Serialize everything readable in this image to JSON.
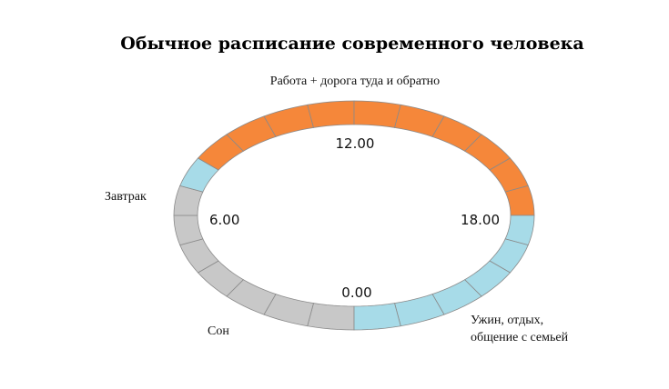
{
  "title": "Обычное расписание современного человека",
  "colors": {
    "work": "#f5873a",
    "leisure": "#a7dbe8",
    "sleep": "#c8c8c8",
    "divider": "#8a8a8a"
  },
  "hour_labels": {
    "noon": "12.00",
    "morning": "6.00",
    "evening": "18.00",
    "midnight": "0.00"
  },
  "activities": {
    "work": "Работа + дорога туда и обратно",
    "breakfast": "Завтрак",
    "sleep": "Сон",
    "evening_line1": "Ужин, отдых,",
    "evening_line2": "общение с семьей"
  },
  "schedule": [
    {
      "from": 0,
      "to": 7,
      "activity": "sleep"
    },
    {
      "from": 7,
      "to": 8,
      "activity": "leisure"
    },
    {
      "from": 8,
      "to": 18,
      "activity": "work"
    },
    {
      "from": 18,
      "to": 24,
      "activity": "leisure"
    }
  ]
}
